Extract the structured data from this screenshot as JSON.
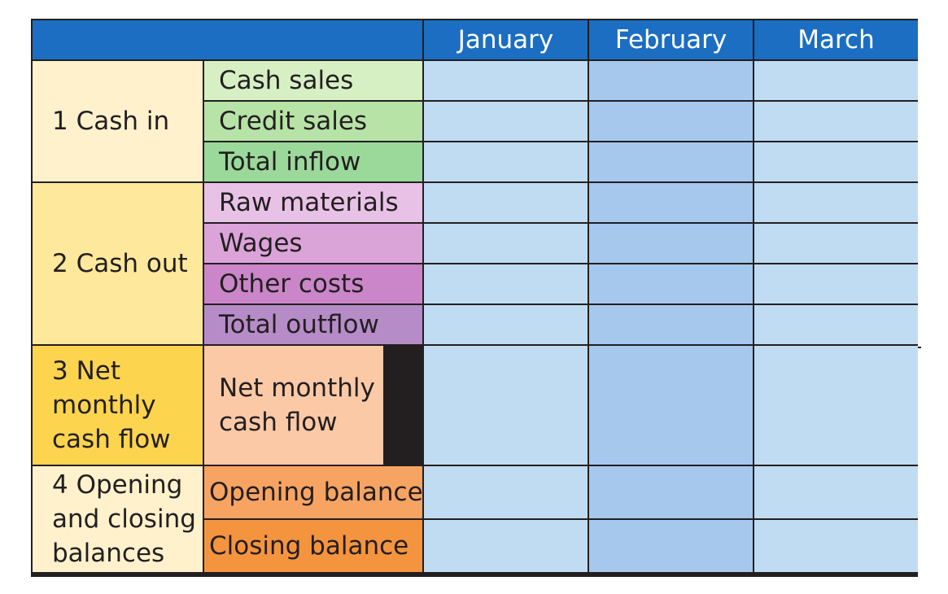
{
  "header": {
    "months": [
      "January",
      "February",
      "March"
    ]
  },
  "sections": [
    {
      "label": "1 Cash in",
      "rows": [
        "Cash sales",
        "Credit sales",
        "Total inflow"
      ]
    },
    {
      "label": "2 Cash out",
      "rows": [
        "Raw materials",
        "Wages",
        "Other costs",
        "Total outflow"
      ]
    },
    {
      "label": "3 Net monthly cash flow",
      "rows": [
        "Net monthly cash flow"
      ]
    },
    {
      "label": "4 Opening and closing balances",
      "rows": [
        "Opening balance",
        "Closing balance"
      ]
    }
  ],
  "colors": {
    "header_blue": "#1b6ec2",
    "grid_line": "#231f20",
    "month_cell_light": "#c0dcf2",
    "month_cell_dark": "#a6c8ed"
  }
}
